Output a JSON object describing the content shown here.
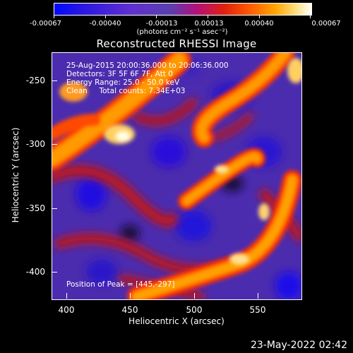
{
  "colorbar": {
    "tick_labels": [
      "-0.00067",
      "-0.00040",
      "-0.00013",
      "0.00013",
      "0.00040",
      "0.00067"
    ],
    "unit_label": "(photons cm⁻² s⁻¹ asec⁻²)"
  },
  "title": "Reconstructed RHESSI Image",
  "annotations": {
    "time_range": "25-Aug-2015 20:00:36.000 to 20:06:36.000",
    "detectors": "Detectors: 3F 5F 6F 7F, Att 0",
    "energy_range": "Energy Range: 25.0 - 50.0 keV",
    "algorithm_counts": "Clean     Total counts: 7.34E+03",
    "peak": "Position of Peak = [445,-297]"
  },
  "x_axis": {
    "title": "Heliocentric X (arcsec)",
    "tick_labels": [
      "400",
      "450",
      "500",
      "550"
    ]
  },
  "y_axis": {
    "title": "Heliocentric Y (arcsec)",
    "tick_labels": [
      "-250",
      "-300",
      "-350",
      "-400"
    ]
  },
  "timestamp": "23-May-2022 02:42",
  "colors": {
    "background": "#000000",
    "low": "#0008ff",
    "mid": "#5a3fb0",
    "high": "#ff8c00",
    "peak": "#ffffff"
  }
}
